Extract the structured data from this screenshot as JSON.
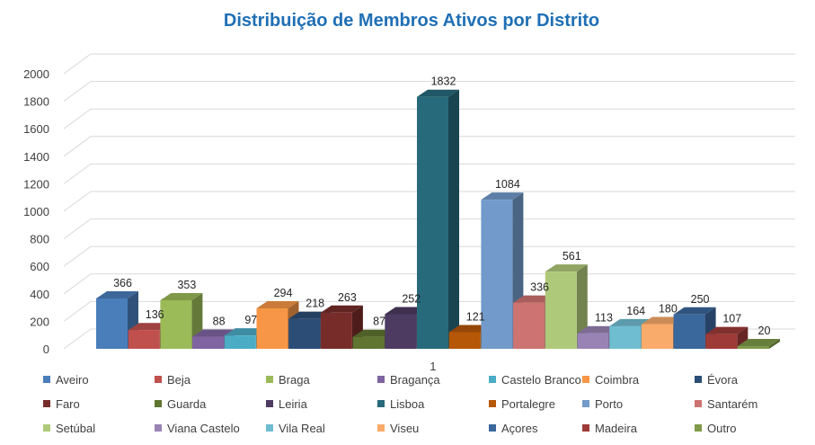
{
  "chart_data": {
    "type": "bar",
    "title": "Distribuição de Membros Ativos por Distrito",
    "categories": [
      "1"
    ],
    "ylim": [
      0,
      2000
    ],
    "yticks": [
      0,
      200,
      400,
      600,
      800,
      1000,
      1200,
      1400,
      1600,
      1800,
      2000
    ],
    "grid": true,
    "legend_position": "bottom",
    "colors": {
      "title": "#1f6fb5",
      "grid": "#d9d9d9"
    },
    "series": [
      {
        "name": "Aveiro",
        "values": [
          366
        ],
        "color": "#4a7ebb"
      },
      {
        "name": "Beja",
        "values": [
          136
        ],
        "color": "#c0504d"
      },
      {
        "name": "Braga",
        "values": [
          353
        ],
        "color": "#9bbb59"
      },
      {
        "name": "Bragança",
        "values": [
          88
        ],
        "color": "#8064a2"
      },
      {
        "name": "Castelo Branco",
        "values": [
          97
        ],
        "color": "#4bacc6"
      },
      {
        "name": "Coimbra",
        "values": [
          294
        ],
        "color": "#f79646"
      },
      {
        "name": "Évora",
        "values": [
          218
        ],
        "color": "#2c4d75"
      },
      {
        "name": "Faro",
        "values": [
          263
        ],
        "color": "#772c2a"
      },
      {
        "name": "Guarda",
        "values": [
          87
        ],
        "color": "#5f7530"
      },
      {
        "name": "Leiria",
        "values": [
          252
        ],
        "color": "#4d3b62"
      },
      {
        "name": "Lisboa",
        "values": [
          1832
        ],
        "color": "#276a7c"
      },
      {
        "name": "Portalegre",
        "values": [
          121
        ],
        "color": "#b65708"
      },
      {
        "name": "Porto",
        "values": [
          1084
        ],
        "color": "#729aca"
      },
      {
        "name": "Santarém",
        "values": [
          336
        ],
        "color": "#cd7371"
      },
      {
        "name": "Setúbal",
        "values": [
          561
        ],
        "color": "#afc97a"
      },
      {
        "name": "Viana Castelo",
        "values": [
          113
        ],
        "color": "#9983b5"
      },
      {
        "name": "Vila Real",
        "values": [
          164
        ],
        "color": "#6fbdd1"
      },
      {
        "name": "Viseu",
        "values": [
          180
        ],
        "color": "#f9ab6b"
      },
      {
        "name": "Açores",
        "values": [
          250
        ],
        "color": "#3a679c"
      },
      {
        "name": "Madeira",
        "values": [
          107
        ],
        "color": "#9e3a38"
      },
      {
        "name": "Outro",
        "values": [
          20
        ],
        "color": "#7f9a48"
      }
    ]
  }
}
